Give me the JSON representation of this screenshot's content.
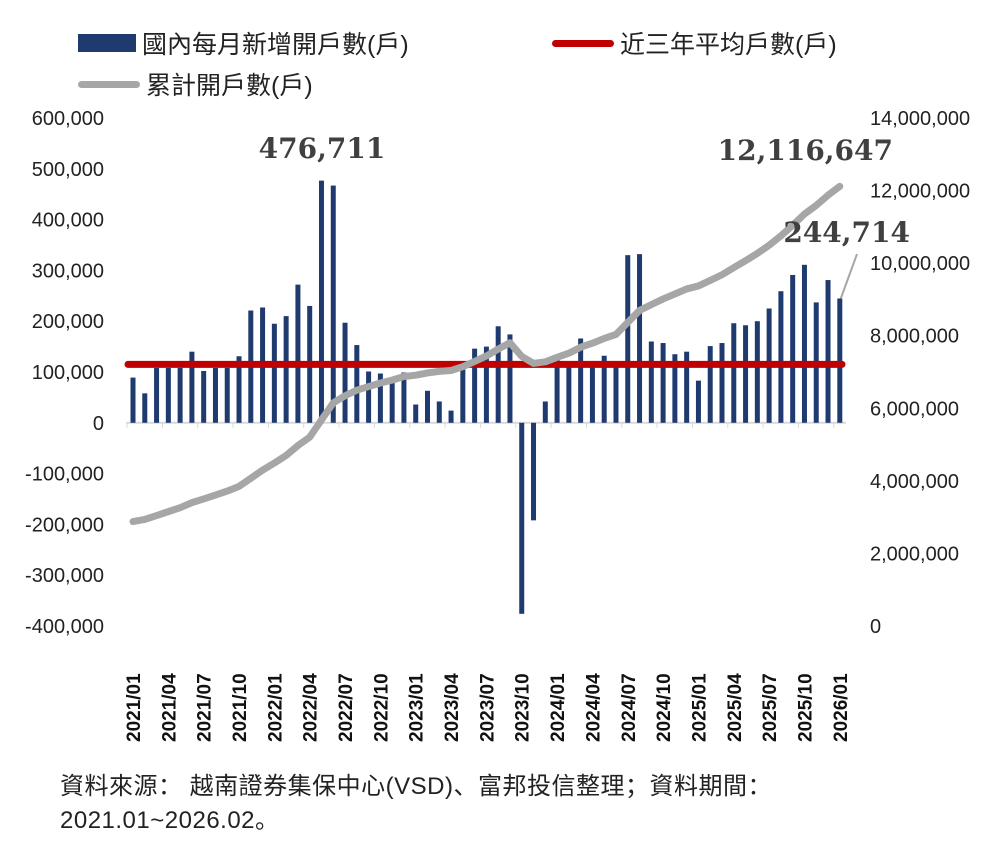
{
  "legend": [
    {
      "label": "國內每月新增開戶數(戶)",
      "color": "#1f3a6e",
      "kind": "bar"
    },
    {
      "label": "近三年平均戶數(戶)",
      "color": "#c00000",
      "kind": "line"
    },
    {
      "label": "累計開戶數(戶)",
      "color": "#a6a6a6",
      "kind": "line"
    }
  ],
  "footer": {
    "line1": "資料來源： 越南證券集保中心(VSD)、富邦投信整理；資料期間：",
    "line2": "2021.01~2026.02。"
  },
  "chart_data": {
    "type": "bar+line",
    "categories": [
      "2021/01",
      "2021/02",
      "2021/03",
      "2021/04",
      "2021/05",
      "2021/06",
      "2021/07",
      "2021/08",
      "2021/09",
      "2021/10",
      "2021/11",
      "2021/12",
      "2022/01",
      "2022/02",
      "2022/03",
      "2022/04",
      "2022/05",
      "2022/06",
      "2022/07",
      "2022/08",
      "2022/09",
      "2022/10",
      "2022/11",
      "2022/12",
      "2023/01",
      "2023/02",
      "2023/03",
      "2023/04",
      "2023/05",
      "2023/06",
      "2023/07",
      "2023/08",
      "2023/09",
      "2023/10",
      "2023/11",
      "2023/12",
      "2024/01",
      "2024/02",
      "2024/03",
      "2024/04",
      "2024/05",
      "2024/06",
      "2024/07",
      "2024/08",
      "2024/09",
      "2024/10",
      "2024/11",
      "2024/12",
      "2025/01",
      "2025/02",
      "2025/03",
      "2025/04",
      "2025/05",
      "2025/06",
      "2025/07",
      "2025/08",
      "2025/09",
      "2025/10",
      "2025/11",
      "2025/12",
      "2026/01"
    ],
    "x_tick_labels": [
      "2021/01",
      "2021/04",
      "2021/07",
      "2021/10",
      "2022/01",
      "2022/04",
      "2022/07",
      "2022/10",
      "2023/01",
      "2023/04",
      "2023/07",
      "2023/10",
      "2024/01",
      "2024/04",
      "2024/07",
      "2024/10",
      "2025/01",
      "2025/04",
      "2025/07",
      "2025/10",
      "2026/01"
    ],
    "series": [
      {
        "name": "國內每月新增開戶數(戶)",
        "type": "bar",
        "axis": "left",
        "color": "#1f3a6e",
        "values": [
          89000,
          58000,
          108000,
          108000,
          108000,
          140000,
          102000,
          108000,
          108000,
          131000,
          221000,
          227000,
          195000,
          210000,
          272000,
          230000,
          476711,
          467000,
          197000,
          153000,
          101000,
          97000,
          81000,
          99000,
          36000,
          63000,
          42000,
          24000,
          105000,
          146000,
          150000,
          190000,
          174000,
          -376000,
          -192000,
          42000,
          125000,
          112000,
          166000,
          110000,
          132000,
          110000,
          330000,
          332000,
          160000,
          157000,
          135000,
          140000,
          83000,
          151000,
          157000,
          196000,
          192000,
          200000,
          225000,
          259000,
          291000,
          311000,
          237000,
          281000,
          244714
        ]
      },
      {
        "name": "近三年平均戶數(戶)",
        "type": "line",
        "axis": "left",
        "color": "#c00000",
        "constant": 115000
      },
      {
        "name": "累計開戶數(戶)",
        "type": "line",
        "axis": "right",
        "color": "#a6a6a6",
        "values": [
          2878000,
          2936000,
          3044000,
          3152000,
          3260000,
          3400000,
          3502000,
          3610000,
          3718000,
          3849000,
          4070000,
          4297000,
          4492000,
          4702000,
          4974000,
          5204000,
          5681000,
          6148000,
          6345000,
          6498000,
          6599000,
          6696000,
          6777000,
          6876000,
          6912000,
          6975000,
          7017000,
          7041000,
          7146000,
          7292000,
          7442000,
          7632000,
          7806000,
          7430000,
          7238000,
          7280000,
          7405000,
          7517000,
          7683000,
          7793000,
          7925000,
          8035000,
          8365000,
          8697000,
          8857000,
          9014000,
          9149000,
          9289000,
          9372000,
          9523000,
          9680000,
          9876000,
          10068000,
          10268000,
          10493000,
          10752000,
          11043000,
          11354000,
          11591000,
          11872000,
          12116647
        ]
      }
    ],
    "y_left": {
      "min": -400000,
      "max": 600000,
      "step": 100000,
      "tick_labels": [
        "-400,000",
        "-300,000",
        "-200,000",
        "-100,000",
        "0",
        "100,000",
        "200,000",
        "300,000",
        "400,000",
        "500,000",
        "600,000"
      ]
    },
    "y_right": {
      "min": 0,
      "max": 14000000,
      "step": 2000000,
      "tick_labels": [
        "0",
        "2,000,000",
        "4,000,000",
        "6,000,000",
        "8,000,000",
        "10,000,000",
        "12,000,000",
        "14,000,000"
      ]
    },
    "annotations": [
      {
        "text": "476,711",
        "category": "2022/05",
        "series": 0
      },
      {
        "text": "12,116,647",
        "category": "2026/01",
        "series": 2
      },
      {
        "text": "244,714",
        "category": "2026/01",
        "series": 0
      }
    ],
    "grid": false,
    "legend_position": "top"
  }
}
